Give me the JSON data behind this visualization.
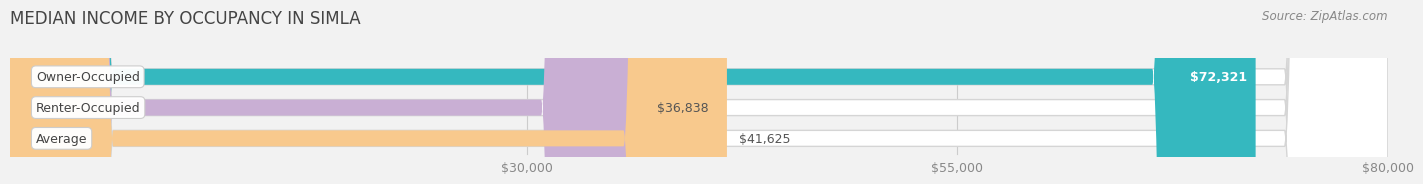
{
  "title": "MEDIAN INCOME BY OCCUPANCY IN SIMLA",
  "source": "Source: ZipAtlas.com",
  "categories": [
    "Owner-Occupied",
    "Renter-Occupied",
    "Average"
  ],
  "values": [
    72321,
    36838,
    41625
  ],
  "labels": [
    "$72,321",
    "$36,838",
    "$41,625"
  ],
  "label_inside": [
    true,
    false,
    false
  ],
  "bar_colors": [
    "#35b8bf",
    "#c9afd4",
    "#f8c98d"
  ],
  "background_color": "#f2f2f2",
  "bar_bg_color": "#e8e8e8",
  "xlim_min": 0,
  "xlim_max": 80000,
  "xticks": [
    30000,
    55000,
    80000
  ],
  "xticklabels": [
    "$30,000",
    "$55,000",
    "$80,000"
  ],
  "bar_height": 0.52,
  "title_fontsize": 12,
  "cat_fontsize": 9,
  "val_fontsize": 9,
  "tick_fontsize": 9,
  "source_fontsize": 8.5
}
